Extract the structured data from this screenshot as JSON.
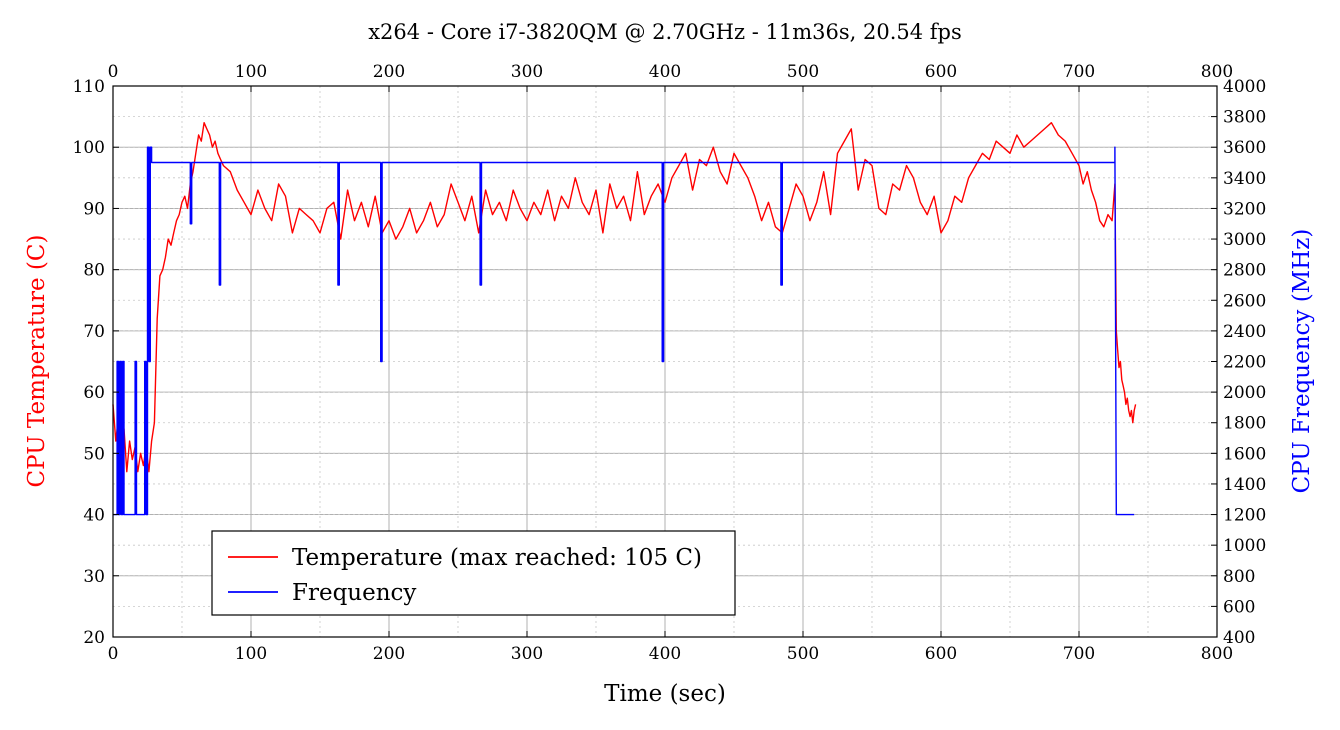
{
  "chart_data": {
    "type": "line",
    "title": "x264 - Core i7-3820QM @ 2.70GHz - 11m36s, 20.54 fps",
    "xlabel": "Time (sec)",
    "ylabel_left": "CPU Temperature (C)",
    "ylabel_right": "CPU Frequency (MHz)",
    "xlim": [
      0,
      800
    ],
    "ylim_left": [
      20,
      110
    ],
    "ylim_right": [
      400,
      4000
    ],
    "x_ticks": [
      "0",
      "100",
      "200",
      "300",
      "400",
      "500",
      "600",
      "700",
      "800"
    ],
    "y_left_ticks": [
      "20",
      "30",
      "40",
      "50",
      "60",
      "70",
      "80",
      "90",
      "100",
      "110"
    ],
    "y_right_ticks": [
      "400",
      "600",
      "800",
      "1000",
      "1200",
      "1400",
      "1600",
      "1800",
      "2000",
      "2200",
      "2400",
      "2600",
      "2800",
      "3000",
      "3200",
      "3400",
      "3600",
      "3800",
      "4000"
    ],
    "grid": true,
    "legend_position": "bottom-left",
    "colors": {
      "temperature": "#ff0000",
      "frequency": "#0000ff"
    },
    "series": [
      {
        "name": "Temperature (max reached: 105 C)",
        "axis": "left",
        "x": [
          0,
          2,
          4,
          6,
          8,
          10,
          12,
          14,
          16,
          18,
          20,
          22,
          24,
          26,
          28,
          30,
          32,
          34,
          36,
          38,
          40,
          42,
          44,
          46,
          48,
          50,
          52,
          54,
          56,
          58,
          60,
          62,
          64,
          66,
          68,
          70,
          72,
          74,
          76,
          78,
          80,
          85,
          90,
          95,
          100,
          105,
          110,
          115,
          120,
          125,
          130,
          135,
          140,
          145,
          150,
          155,
          160,
          165,
          170,
          175,
          180,
          185,
          190,
          195,
          200,
          205,
          210,
          215,
          220,
          225,
          230,
          235,
          240,
          245,
          250,
          255,
          260,
          265,
          270,
          275,
          280,
          285,
          290,
          295,
          300,
          305,
          310,
          315,
          320,
          325,
          330,
          335,
          340,
          345,
          350,
          355,
          360,
          365,
          370,
          375,
          380,
          385,
          390,
          395,
          400,
          405,
          410,
          415,
          420,
          425,
          430,
          435,
          440,
          445,
          450,
          455,
          460,
          465,
          470,
          475,
          480,
          485,
          490,
          495,
          500,
          505,
          510,
          515,
          520,
          525,
          530,
          535,
          540,
          545,
          550,
          555,
          560,
          565,
          570,
          575,
          580,
          585,
          590,
          595,
          600,
          605,
          610,
          615,
          620,
          625,
          630,
          635,
          640,
          645,
          650,
          655,
          660,
          665,
          670,
          675,
          680,
          685,
          690,
          695,
          700,
          703,
          706,
          709,
          712,
          715,
          718,
          721,
          724,
          726,
          727,
          728,
          729,
          730,
          731,
          732,
          733,
          734,
          735,
          736,
          737,
          738,
          739,
          740,
          741
        ],
        "values": [
          58,
          52,
          56,
          49,
          54,
          47,
          52,
          49,
          51,
          47,
          50,
          48,
          51,
          47,
          52,
          55,
          72,
          79,
          80,
          82,
          85,
          84,
          86,
          88,
          89,
          91,
          92,
          90,
          94,
          96,
          99,
          102,
          101,
          104,
          103,
          102,
          100,
          101,
          99,
          98,
          97,
          96,
          93,
          91,
          89,
          93,
          90,
          88,
          94,
          92,
          86,
          90,
          89,
          88,
          86,
          90,
          91,
          85,
          93,
          88,
          91,
          87,
          92,
          86,
          88,
          85,
          87,
          90,
          86,
          88,
          91,
          87,
          89,
          94,
          91,
          88,
          92,
          86,
          93,
          89,
          91,
          88,
          93,
          90,
          88,
          91,
          89,
          93,
          88,
          92,
          90,
          95,
          91,
          89,
          93,
          86,
          94,
          90,
          92,
          88,
          96,
          89,
          92,
          94,
          91,
          95,
          97,
          99,
          93,
          98,
          97,
          100,
          96,
          94,
          99,
          97,
          95,
          92,
          88,
          91,
          87,
          86,
          90,
          94,
          92,
          88,
          91,
          96,
          89,
          99,
          101,
          103,
          93,
          98,
          97,
          90,
          89,
          94,
          93,
          97,
          95,
          91,
          89,
          92,
          86,
          88,
          92,
          91,
          95,
          97,
          99,
          98,
          101,
          100,
          99,
          102,
          100,
          101,
          102,
          103,
          104,
          102,
          101,
          99,
          97,
          94,
          96,
          93,
          91,
          88,
          87,
          89,
          88,
          94,
          70,
          67,
          64,
          65,
          62,
          61,
          60,
          58,
          59,
          57,
          56,
          57,
          55,
          57,
          58
        ]
      },
      {
        "name": "Frequency",
        "axis": "right",
        "x": [
          0,
          3,
          3,
          4,
          4,
          5,
          5,
          6,
          6,
          7,
          7,
          8,
          8,
          9,
          9,
          16,
          16,
          17,
          17,
          23,
          23,
          24,
          24,
          25,
          25,
          26,
          26,
          27,
          27,
          28,
          28,
          29,
          29,
          30,
          30,
          56,
          56,
          57,
          57,
          77,
          77,
          78,
          78,
          163,
          163,
          164,
          164,
          194,
          194,
          195,
          195,
          266,
          266,
          267,
          267,
          398,
          398,
          399,
          399,
          484,
          484,
          485,
          485,
          726,
          726,
          727,
          727,
          740
        ],
        "values": [
          1200,
          1200,
          2200,
          2200,
          1200,
          1200,
          2200,
          2200,
          1200,
          1200,
          2200,
          2200,
          1200,
          1200,
          1200,
          1200,
          2200,
          2200,
          1200,
          1200,
          2200,
          2200,
          1200,
          1200,
          3600,
          3600,
          2200,
          2200,
          3600,
          3600,
          3500,
          3500,
          3500,
          3500,
          3500,
          3500,
          3100,
          3100,
          3500,
          3500,
          2700,
          2700,
          3500,
          3500,
          2700,
          2700,
          3500,
          3500,
          2200,
          2200,
          3500,
          3500,
          2700,
          2700,
          3500,
          3500,
          2200,
          2200,
          3500,
          3500,
          2700,
          2700,
          3500,
          3500,
          3600,
          1200,
          1200,
          1200
        ]
      }
    ]
  }
}
